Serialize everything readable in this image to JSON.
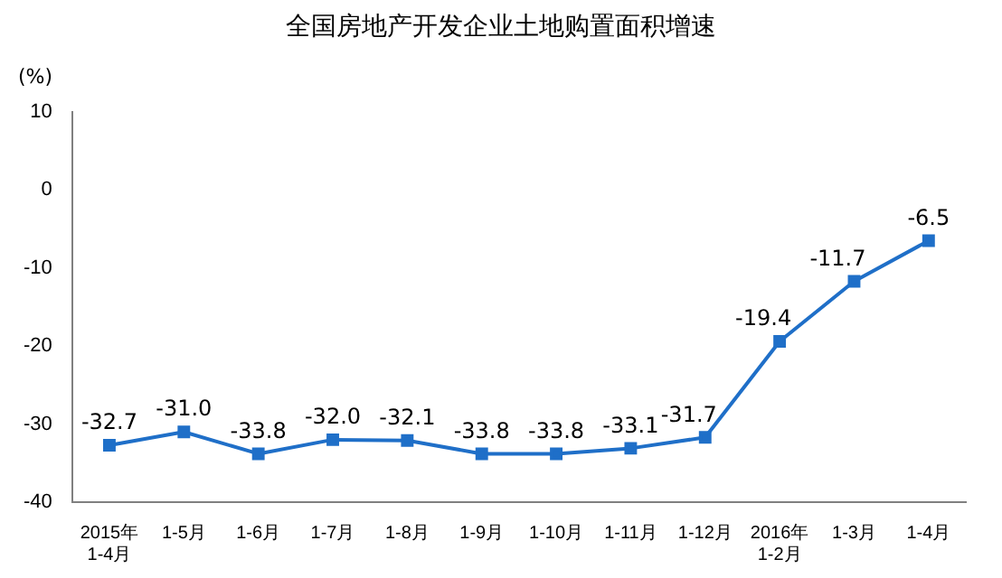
{
  "chart_data": {
    "type": "line",
    "title": "全国房地产开发企业土地购置面积增速",
    "ylabel": "(%)",
    "categories": [
      "2015年\n1-4月",
      "1-5月",
      "1-6月",
      "1-7月",
      "1-8月",
      "1-9月",
      "1-10月",
      "1-11月",
      "1-12月",
      "2016年\n1-2月",
      "1-3月",
      "1-4月"
    ],
    "values": [
      -32.7,
      -31.0,
      -33.8,
      -32.0,
      -32.1,
      -33.8,
      -33.8,
      -33.1,
      -31.7,
      -19.4,
      -11.7,
      -6.5
    ],
    "value_labels": [
      "-32.7",
      "-31.0",
      "-33.8",
      "-32.0",
      "-32.1",
      "-33.8",
      "-33.8",
      "-33.1",
      "-31.7",
      "-19.4",
      "-11.7",
      "-6.5"
    ],
    "color": "#1f6fc8",
    "marker": "square",
    "line_style": "solid",
    "grid": false,
    "legend": false,
    "ylim": [
      -40,
      10
    ],
    "yticks": [
      -40,
      -30,
      -20,
      -10,
      0,
      10
    ]
  }
}
